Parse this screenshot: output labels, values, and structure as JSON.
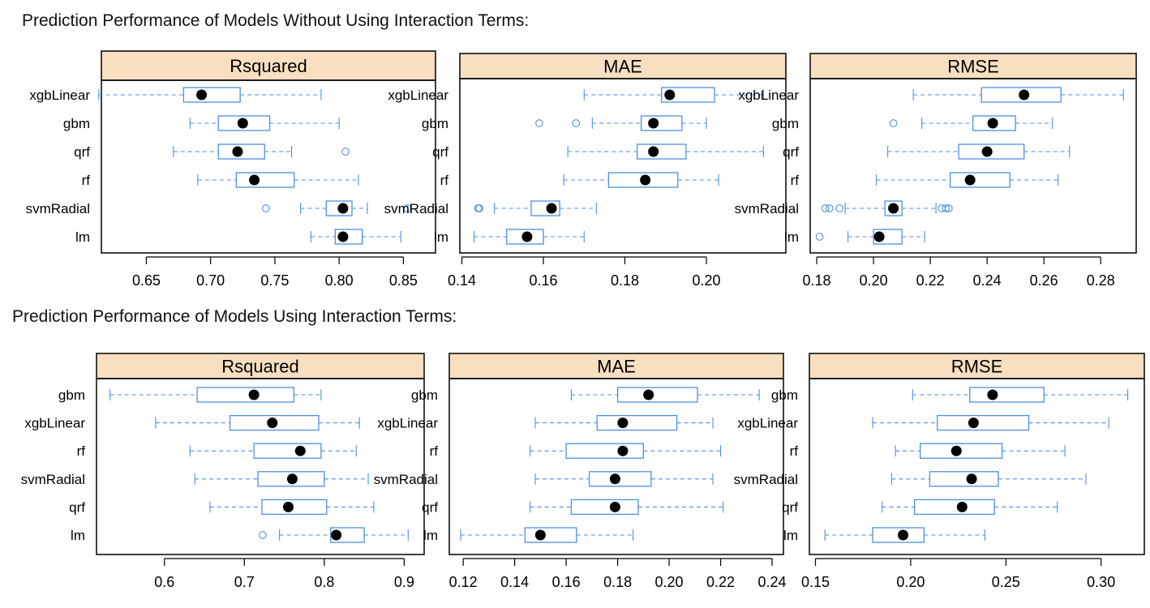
{
  "titles": {
    "top": "Prediction Performance of Models Without Using Interaction Terms:",
    "bottom": "Prediction Performance of Models Using Interaction Terms:"
  },
  "colors": {
    "box": "#4d8fe0",
    "median_dot": "#000000",
    "strip": "#f8dfc0",
    "frame": "#000000"
  },
  "chart_data": [
    {
      "type": "boxplot",
      "group": "without_interaction",
      "title": "Rsquared",
      "categories": [
        "xgbLinear",
        "gbm",
        "qrf",
        "rf",
        "svmRadial",
        "lm"
      ],
      "xlim": [
        0.615,
        0.875
      ],
      "xticks": [
        0.65,
        0.7,
        0.75,
        0.8,
        0.85
      ],
      "xtick_labels": [
        "0.65",
        "0.70",
        "0.75",
        "0.80",
        "0.85"
      ],
      "boxes": [
        {
          "min": 0.613,
          "q1": 0.679,
          "median": 0.693,
          "q3": 0.723,
          "max": 0.786,
          "outliers": []
        },
        {
          "min": 0.684,
          "q1": 0.706,
          "median": 0.725,
          "q3": 0.746,
          "max": 0.8,
          "outliers": []
        },
        {
          "min": 0.671,
          "q1": 0.706,
          "median": 0.721,
          "q3": 0.742,
          "max": 0.763,
          "outliers": [
            0.805
          ]
        },
        {
          "min": 0.69,
          "q1": 0.72,
          "median": 0.734,
          "q3": 0.765,
          "max": 0.815,
          "outliers": []
        },
        {
          "min": 0.77,
          "q1": 0.79,
          "median": 0.803,
          "q3": 0.81,
          "max": 0.822,
          "outliers": [
            0.743,
            0.853
          ]
        },
        {
          "min": 0.778,
          "q1": 0.797,
          "median": 0.803,
          "q3": 0.818,
          "max": 0.848,
          "outliers": []
        }
      ]
    },
    {
      "type": "boxplot",
      "group": "without_interaction",
      "title": "MAE",
      "categories": [
        "xgbLinear",
        "gbm",
        "qrf",
        "rf",
        "svmRadial",
        "lm"
      ],
      "xlim": [
        0.1395,
        0.2195
      ],
      "xticks": [
        0.14,
        0.16,
        0.18,
        0.2
      ],
      "xtick_labels": [
        "0.14",
        "0.16",
        "0.18",
        "0.20"
      ],
      "boxes": [
        {
          "min": 0.17,
          "q1": 0.189,
          "median": 0.191,
          "q3": 0.202,
          "max": 0.214,
          "outliers": []
        },
        {
          "min": 0.172,
          "q1": 0.184,
          "median": 0.187,
          "q3": 0.194,
          "max": 0.2,
          "outliers": [
            0.159,
            0.168
          ]
        },
        {
          "min": 0.166,
          "q1": 0.183,
          "median": 0.187,
          "q3": 0.195,
          "max": 0.214,
          "outliers": []
        },
        {
          "min": 0.165,
          "q1": 0.176,
          "median": 0.185,
          "q3": 0.193,
          "max": 0.203,
          "outliers": []
        },
        {
          "min": 0.148,
          "q1": 0.157,
          "median": 0.162,
          "q3": 0.164,
          "max": 0.173,
          "outliers": [
            0.144,
            0.1443
          ]
        },
        {
          "min": 0.143,
          "q1": 0.151,
          "median": 0.156,
          "q3": 0.16,
          "max": 0.17,
          "outliers": []
        }
      ]
    },
    {
      "type": "boxplot",
      "group": "without_interaction",
      "title": "RMSE",
      "categories": [
        "xgbLinear",
        "gbm",
        "qrf",
        "rf",
        "svmRadial",
        "lm"
      ],
      "xlim": [
        0.1777,
        0.2925
      ],
      "xticks": [
        0.18,
        0.2,
        0.22,
        0.24,
        0.26,
        0.28
      ],
      "xtick_labels": [
        "0.18",
        "0.20",
        "0.22",
        "0.24",
        "0.26",
        "0.28"
      ],
      "boxes": [
        {
          "min": 0.214,
          "q1": 0.238,
          "median": 0.253,
          "q3": 0.266,
          "max": 0.288,
          "outliers": []
        },
        {
          "min": 0.217,
          "q1": 0.235,
          "median": 0.242,
          "q3": 0.25,
          "max": 0.263,
          "outliers": [
            0.207
          ]
        },
        {
          "min": 0.205,
          "q1": 0.23,
          "median": 0.24,
          "q3": 0.253,
          "max": 0.269,
          "outliers": []
        },
        {
          "min": 0.201,
          "q1": 0.227,
          "median": 0.234,
          "q3": 0.248,
          "max": 0.265,
          "outliers": []
        },
        {
          "min": 0.19,
          "q1": 0.204,
          "median": 0.207,
          "q3": 0.21,
          "max": 0.222,
          "outliers": [
            0.183,
            0.1845,
            0.188,
            0.224,
            0.2255,
            0.2265
          ]
        },
        {
          "min": 0.191,
          "q1": 0.2,
          "median": 0.202,
          "q3": 0.21,
          "max": 0.218,
          "outliers": [
            0.181
          ]
        }
      ]
    },
    {
      "type": "boxplot",
      "group": "with_interaction",
      "title": "Rsquared",
      "categories": [
        "gbm",
        "xgbLinear",
        "rf",
        "svmRadial",
        "qrf",
        "lm"
      ],
      "xlim": [
        0.515,
        0.925
      ],
      "xticks": [
        0.6,
        0.7,
        0.8,
        0.9
      ],
      "xtick_labels": [
        "0.6",
        "0.7",
        "0.8",
        "0.9"
      ],
      "boxes": [
        {
          "min": 0.532,
          "q1": 0.641,
          "median": 0.712,
          "q3": 0.762,
          "max": 0.796,
          "outliers": []
        },
        {
          "min": 0.589,
          "q1": 0.682,
          "median": 0.735,
          "q3": 0.793,
          "max": 0.844,
          "outliers": []
        },
        {
          "min": 0.632,
          "q1": 0.712,
          "median": 0.77,
          "q3": 0.796,
          "max": 0.84,
          "outliers": []
        },
        {
          "min": 0.638,
          "q1": 0.717,
          "median": 0.76,
          "q3": 0.8,
          "max": 0.855,
          "outliers": []
        },
        {
          "min": 0.657,
          "q1": 0.722,
          "median": 0.755,
          "q3": 0.803,
          "max": 0.862,
          "outliers": []
        },
        {
          "min": 0.744,
          "q1": 0.808,
          "median": 0.815,
          "q3": 0.85,
          "max": 0.905,
          "outliers": [
            0.723
          ]
        }
      ]
    },
    {
      "type": "boxplot",
      "group": "with_interaction",
      "title": "MAE",
      "categories": [
        "gbm",
        "xgbLinear",
        "rf",
        "svmRadial",
        "qrf",
        "lm"
      ],
      "xlim": [
        0.1146,
        0.2444
      ],
      "xticks": [
        0.12,
        0.14,
        0.16,
        0.18,
        0.2,
        0.22,
        0.24
      ],
      "xtick_labels": [
        "0.12",
        "0.14",
        "0.16",
        "0.18",
        "0.20",
        "0.22",
        "0.24"
      ],
      "boxes": [
        {
          "min": 0.162,
          "q1": 0.18,
          "median": 0.192,
          "q3": 0.211,
          "max": 0.235,
          "outliers": []
        },
        {
          "min": 0.148,
          "q1": 0.172,
          "median": 0.182,
          "q3": 0.203,
          "max": 0.217,
          "outliers": []
        },
        {
          "min": 0.146,
          "q1": 0.16,
          "median": 0.182,
          "q3": 0.19,
          "max": 0.22,
          "outliers": []
        },
        {
          "min": 0.148,
          "q1": 0.169,
          "median": 0.179,
          "q3": 0.193,
          "max": 0.217,
          "outliers": []
        },
        {
          "min": 0.146,
          "q1": 0.162,
          "median": 0.179,
          "q3": 0.188,
          "max": 0.221,
          "outliers": []
        },
        {
          "min": 0.119,
          "q1": 0.144,
          "median": 0.15,
          "q3": 0.164,
          "max": 0.186,
          "outliers": []
        }
      ]
    },
    {
      "type": "boxplot",
      "group": "with_interaction",
      "title": "RMSE",
      "categories": [
        "gbm",
        "xgbLinear",
        "rf",
        "svmRadial",
        "qrf",
        "lm"
      ],
      "xlim": [
        0.1468,
        0.3227
      ],
      "xticks": [
        0.15,
        0.2,
        0.25,
        0.3
      ],
      "xtick_labels": [
        "0.15",
        "0.20",
        "0.25",
        "0.30"
      ],
      "boxes": [
        {
          "min": 0.201,
          "q1": 0.231,
          "median": 0.243,
          "q3": 0.27,
          "max": 0.314,
          "outliers": []
        },
        {
          "min": 0.18,
          "q1": 0.214,
          "median": 0.233,
          "q3": 0.262,
          "max": 0.304,
          "outliers": []
        },
        {
          "min": 0.192,
          "q1": 0.205,
          "median": 0.224,
          "q3": 0.248,
          "max": 0.281,
          "outliers": []
        },
        {
          "min": 0.19,
          "q1": 0.21,
          "median": 0.232,
          "q3": 0.246,
          "max": 0.292,
          "outliers": []
        },
        {
          "min": 0.185,
          "q1": 0.202,
          "median": 0.227,
          "q3": 0.244,
          "max": 0.277,
          "outliers": []
        },
        {
          "min": 0.155,
          "q1": 0.18,
          "median": 0.196,
          "q3": 0.207,
          "max": 0.239,
          "outliers": []
        }
      ]
    }
  ]
}
